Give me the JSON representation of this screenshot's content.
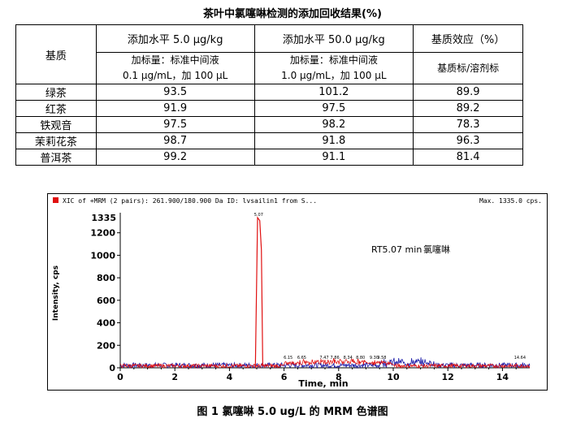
{
  "title": "茶叶中氯噻啉检测的添加回收结果(%)",
  "table": {
    "header_matrix": "基质",
    "col1_head": "添加水平 5.0 μg/kg",
    "col2_head": "添加水平 50.0 μg/kg",
    "col3_head": "基质效应（%）",
    "col1_sub_line1": "加标量：标准中间液",
    "col1_sub_line2": "0.1 μg/mL，加 100 μL",
    "col2_sub_line1": "加标量：标准中间液",
    "col2_sub_line2": "1.0 μg/mL，加 100 μL",
    "col3_sub": "基质标/溶剂标",
    "rows": [
      {
        "matrix": "绿茶",
        "v1": "93.5",
        "v2": "101.2",
        "v3": "89.9"
      },
      {
        "matrix": "红茶",
        "v1": "91.9",
        "v2": "97.5",
        "v3": "89.2"
      },
      {
        "matrix": "铁观音",
        "v1": "97.5",
        "v2": "98.2",
        "v3": "78.3"
      },
      {
        "matrix": "茉莉花茶",
        "v1": "98.7",
        "v2": "91.8",
        "v3": "96.3"
      },
      {
        "matrix": "普洱茶",
        "v1": "99.2",
        "v2": "91.1",
        "v3": "81.4"
      }
    ]
  },
  "chart_data": {
    "type": "line",
    "header_text": "XIC of +MRM (2 pairs): 261.900/180.900 Da ID: lvsailin1 from S...",
    "max_text": "Max. 1335.0 cps.",
    "ylabel": "Intensity, cps",
    "xlabel": "Time, min",
    "ymax_label": "1335",
    "y_ticks": [
      0,
      200,
      400,
      600,
      800,
      1000,
      1200
    ],
    "x_ticks": [
      0,
      2,
      4,
      6,
      8,
      10,
      12,
      14
    ],
    "xlim": [
      0,
      15
    ],
    "ylim": [
      0,
      1335
    ],
    "annotation": "RT5.07 min",
    "compound": "氯噻啉",
    "peak_label": "5.07",
    "peak": {
      "x": 5.07,
      "y": 1335
    },
    "minor_peak_labels": [
      "6.65",
      "6.15",
      "7.47",
      "7.86",
      "8.34",
      "8.80",
      "9.30",
      "9.58",
      "14.64"
    ],
    "series_colors": {
      "red": "#e01010",
      "blue": "#1a1aa8"
    }
  },
  "caption": "图 1  氯噻啉 5.0 ug/L 的 MRM 色谱图"
}
